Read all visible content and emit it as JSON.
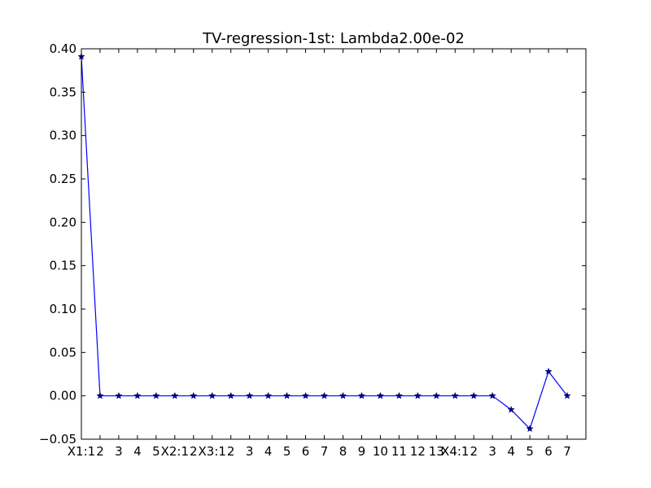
{
  "chart_data": {
    "type": "line",
    "title": "TV-regression-1st: Lambda2.00e-02",
    "xlabel": "",
    "ylabel": "",
    "x": [
      0,
      1,
      2,
      3,
      4,
      5,
      6,
      7,
      8,
      9,
      10,
      11,
      12,
      13,
      14,
      15,
      16,
      17,
      18,
      19,
      20,
      21,
      22,
      23,
      24,
      25,
      26
    ],
    "categories": [
      "X1:1",
      "2",
      "3",
      "4",
      "5",
      "X2:1",
      "2",
      "X3:1",
      "2",
      "3",
      "4",
      "5",
      "6",
      "7",
      "8",
      "9",
      "10",
      "11",
      "12",
      "13",
      "X4:1",
      "2",
      "3",
      "4",
      "5",
      "6",
      "7"
    ],
    "series": [
      {
        "values": [
          0.391,
          0.0,
          0.0,
          0.0,
          0.0,
          0.0,
          0.0,
          0.0,
          0.0,
          0.0,
          0.0,
          0.0,
          0.0,
          0.0,
          0.0,
          0.0,
          0.0,
          0.0,
          0.0,
          0.0,
          0.0,
          0.0,
          0.0,
          -0.016,
          -0.038,
          0.028,
          0.0
        ],
        "color": "#0000ff",
        "marker": "star",
        "marker_color": "#000080"
      }
    ],
    "xlim": [
      0,
      27
    ],
    "ylim": [
      -0.05,
      0.4
    ],
    "yticks": [
      -0.05,
      0.0,
      0.05,
      0.1,
      0.15,
      0.2,
      0.25,
      0.3,
      0.35,
      0.4
    ],
    "ytick_labels": [
      "−0.05",
      "0.00",
      "0.05",
      "0.10",
      "0.15",
      "0.20",
      "0.25",
      "0.30",
      "0.35",
      "0.40"
    ],
    "grid": false,
    "legend": "none"
  }
}
